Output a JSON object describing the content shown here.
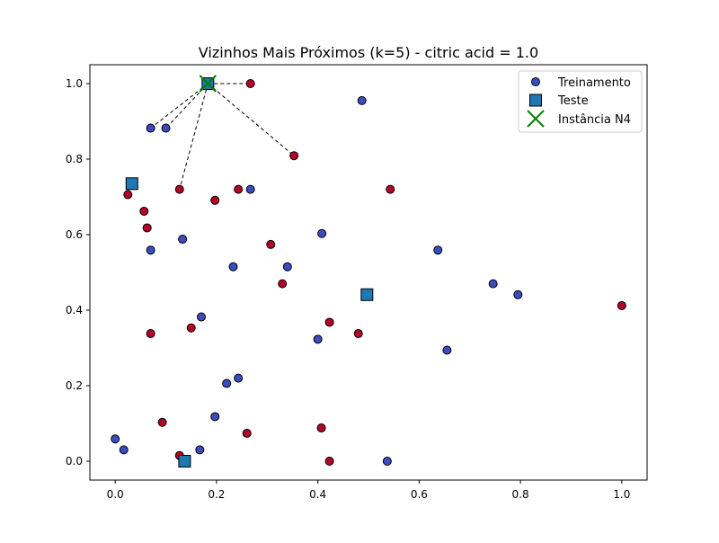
{
  "chart_data": {
    "type": "scatter",
    "title": "Vizinhos Mais Próximos (k=5) - citric acid = 1.0",
    "xlabel": "",
    "ylabel": "",
    "xlim": [
      -0.05,
      1.05
    ],
    "ylim": [
      -0.05,
      1.05
    ],
    "xticks": [
      "0.0",
      "0.2",
      "0.4",
      "0.6",
      "0.8",
      "1.0"
    ],
    "yticks": [
      "0.0",
      "0.2",
      "0.4",
      "0.6",
      "0.8",
      "1.0"
    ],
    "grid": false,
    "legend_position": "top-right",
    "colors": {
      "class_blue": "#3b4cc0",
      "class_red": "#b40426",
      "test": "#1f77b4",
      "query": "#008000",
      "edge": "#000000",
      "neighbor_line": "#000000"
    },
    "series": [
      {
        "name": "Treinamento",
        "marker": "circle",
        "points": [
          {
            "x": 0.487,
            "y": 0.955,
            "cls": "blue"
          },
          {
            "x": 0.07,
            "y": 0.882,
            "cls": "blue"
          },
          {
            "x": 0.1,
            "y": 0.882,
            "cls": "blue"
          },
          {
            "x": 0.267,
            "y": 0.72,
            "cls": "blue"
          },
          {
            "x": 0.408,
            "y": 0.603,
            "cls": "blue"
          },
          {
            "x": 0.07,
            "y": 0.559,
            "cls": "blue"
          },
          {
            "x": 0.133,
            "y": 0.588,
            "cls": "blue"
          },
          {
            "x": 0.637,
            "y": 0.559,
            "cls": "blue"
          },
          {
            "x": 0.233,
            "y": 0.515,
            "cls": "blue"
          },
          {
            "x": 0.34,
            "y": 0.515,
            "cls": "blue"
          },
          {
            "x": 0.746,
            "y": 0.47,
            "cls": "blue"
          },
          {
            "x": 0.795,
            "y": 0.441,
            "cls": "blue"
          },
          {
            "x": 0.17,
            "y": 0.382,
            "cls": "blue"
          },
          {
            "x": 0.4,
            "y": 0.323,
            "cls": "blue"
          },
          {
            "x": 0.655,
            "y": 0.294,
            "cls": "blue"
          },
          {
            "x": 0.243,
            "y": 0.22,
            "cls": "blue"
          },
          {
            "x": 0.22,
            "y": 0.206,
            "cls": "blue"
          },
          {
            "x": 0.197,
            "y": 0.118,
            "cls": "blue"
          },
          {
            "x": 0.0,
            "y": 0.059,
            "cls": "blue"
          },
          {
            "x": 0.017,
            "y": 0.03,
            "cls": "blue"
          },
          {
            "x": 0.167,
            "y": 0.03,
            "cls": "blue"
          },
          {
            "x": 0.537,
            "y": 0.0,
            "cls": "blue"
          },
          {
            "x": 0.267,
            "y": 1.0,
            "cls": "red"
          },
          {
            "x": 0.353,
            "y": 0.809,
            "cls": "red"
          },
          {
            "x": 0.127,
            "y": 0.72,
            "cls": "red"
          },
          {
            "x": 0.243,
            "y": 0.72,
            "cls": "red"
          },
          {
            "x": 0.543,
            "y": 0.72,
            "cls": "red"
          },
          {
            "x": 0.025,
            "y": 0.706,
            "cls": "red"
          },
          {
            "x": 0.197,
            "y": 0.691,
            "cls": "red"
          },
          {
            "x": 0.057,
            "y": 0.662,
            "cls": "red"
          },
          {
            "x": 0.063,
            "y": 0.618,
            "cls": "red"
          },
          {
            "x": 0.307,
            "y": 0.574,
            "cls": "red"
          },
          {
            "x": 0.33,
            "y": 0.47,
            "cls": "red"
          },
          {
            "x": 1.0,
            "y": 0.412,
            "cls": "red"
          },
          {
            "x": 0.423,
            "y": 0.368,
            "cls": "red"
          },
          {
            "x": 0.15,
            "y": 0.353,
            "cls": "red"
          },
          {
            "x": 0.07,
            "y": 0.338,
            "cls": "red"
          },
          {
            "x": 0.48,
            "y": 0.338,
            "cls": "red"
          },
          {
            "x": 0.093,
            "y": 0.103,
            "cls": "red"
          },
          {
            "x": 0.407,
            "y": 0.088,
            "cls": "red"
          },
          {
            "x": 0.26,
            "y": 0.074,
            "cls": "red"
          },
          {
            "x": 0.127,
            "y": 0.015,
            "cls": "red"
          },
          {
            "x": 0.423,
            "y": 0.0,
            "cls": "red"
          }
        ]
      },
      {
        "name": "Teste",
        "marker": "square",
        "points": [
          {
            "x": 0.033,
            "y": 0.735
          },
          {
            "x": 0.497,
            "y": 0.441
          },
          {
            "x": 0.137,
            "y": 0.0
          },
          {
            "x": 0.183,
            "y": 1.0
          }
        ]
      },
      {
        "name": "Instância N4",
        "marker": "x",
        "points": [
          {
            "x": 0.183,
            "y": 1.0
          }
        ]
      }
    ],
    "neighbor_lines": [
      {
        "from": [
          0.183,
          1.0
        ],
        "to": [
          0.267,
          1.0
        ]
      },
      {
        "from": [
          0.183,
          1.0
        ],
        "to": [
          0.07,
          0.882
        ]
      },
      {
        "from": [
          0.183,
          1.0
        ],
        "to": [
          0.1,
          0.882
        ]
      },
      {
        "from": [
          0.183,
          1.0
        ],
        "to": [
          0.353,
          0.809
        ]
      },
      {
        "from": [
          0.183,
          1.0
        ],
        "to": [
          0.127,
          0.72
        ]
      }
    ]
  }
}
